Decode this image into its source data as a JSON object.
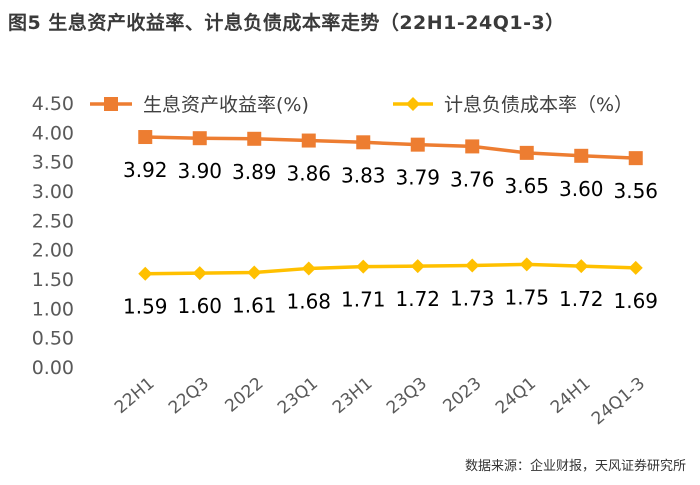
{
  "figure": {
    "title": "图5 生息资产收益率、计息负债成本率走势（22H1-24Q1-3）",
    "source": "数据来源：企业财报，天风证券研究所"
  },
  "colors": {
    "series1": "#ED7D31",
    "series2": "#FFC000",
    "axis_text": "#595959",
    "label_text": "#000000"
  },
  "chart_data": {
    "type": "line",
    "categories": [
      "22H1",
      "22Q3",
      "2022",
      "23Q1",
      "23H1",
      "23Q3",
      "2023",
      "24Q1",
      "24H1",
      "24Q1-3"
    ],
    "series": [
      {
        "name": "生息资产收益率(%)",
        "marker": "square",
        "values": [
          3.92,
          3.9,
          3.89,
          3.86,
          3.83,
          3.79,
          3.76,
          3.65,
          3.6,
          3.56
        ],
        "labels": [
          "3.92",
          "3.90",
          "3.89",
          "3.86",
          "3.83",
          "3.79",
          "3.76",
          "3.65",
          "3.60",
          "3.56"
        ]
      },
      {
        "name": "计息负债成本率（%）",
        "marker": "diamond",
        "values": [
          1.59,
          1.6,
          1.61,
          1.68,
          1.71,
          1.72,
          1.73,
          1.75,
          1.72,
          1.69
        ],
        "labels": [
          "1.59",
          "1.60",
          "1.61",
          "1.68",
          "1.71",
          "1.72",
          "1.73",
          "1.75",
          "1.72",
          "1.69"
        ]
      }
    ],
    "ylim": [
      0,
      4.5
    ],
    "yticks": [
      "0.00",
      "0.50",
      "1.00",
      "1.50",
      "2.00",
      "2.50",
      "3.00",
      "3.50",
      "4.00",
      "4.50"
    ],
    "legend": "top",
    "grid": false
  }
}
